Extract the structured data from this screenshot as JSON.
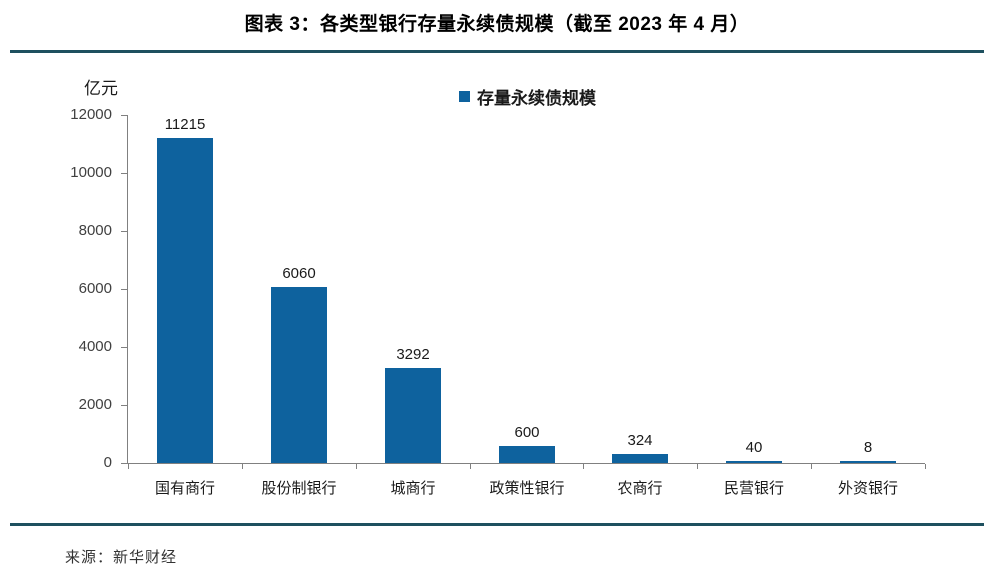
{
  "page": {
    "title": "图表 3：各类型银行存量永续债规模（截至 2023 年 4 月）",
    "source": "来源：新华财经"
  },
  "colors": {
    "bar": "#0E629E",
    "rule": "#1E505F",
    "axis": "#808080"
  },
  "chart_data": {
    "type": "bar",
    "title": "各类型银行存量永续债规模（截至 2023 年 4 月）",
    "unit_label": "亿元",
    "legend": [
      {
        "label": "存量永续债规模",
        "color": "#0E629E"
      }
    ],
    "legend_position": "top",
    "categories": [
      "国有商行",
      "股份制银行",
      "城商行",
      "政策性银行",
      "农商行",
      "民营银行",
      "外资银行"
    ],
    "values": [
      11215,
      6060,
      3292,
      600,
      324,
      40,
      8
    ],
    "ylim": [
      0,
      12000
    ],
    "yticks": [
      0,
      2000,
      4000,
      6000,
      8000,
      10000,
      12000
    ],
    "grid": false
  }
}
